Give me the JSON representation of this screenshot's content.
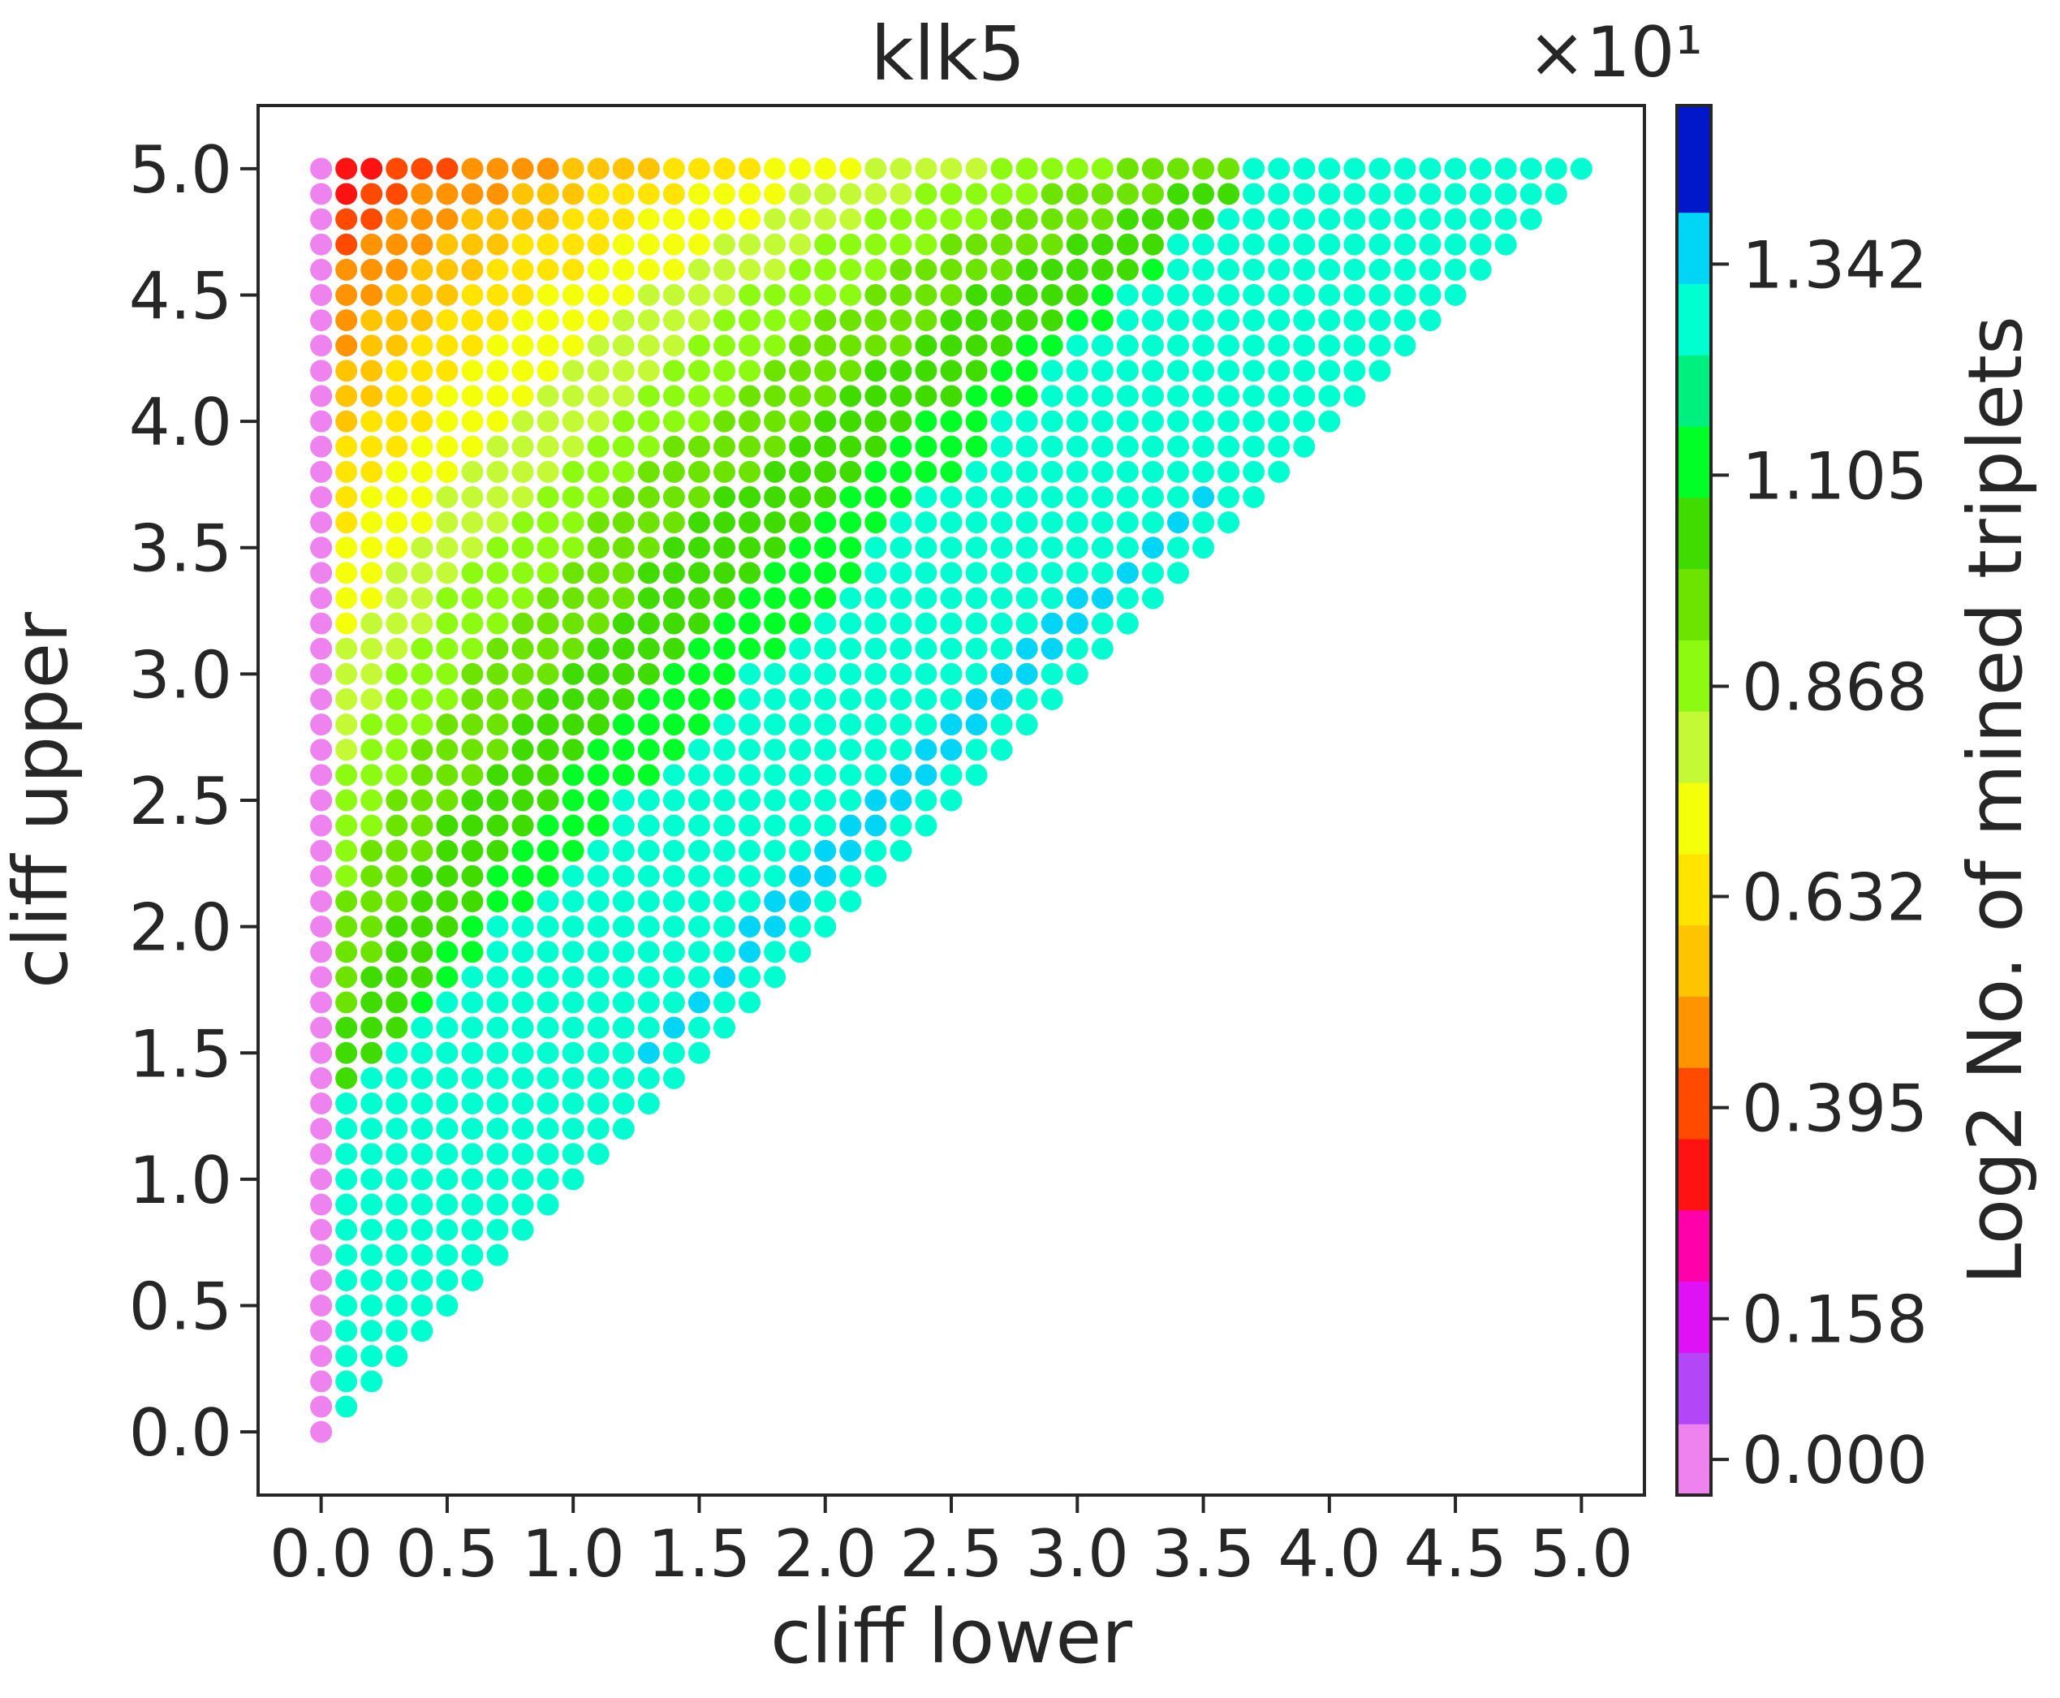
{
  "chart_data": {
    "type": "scatter",
    "title": "klk5",
    "xlabel": "cliff lower",
    "ylabel": "cliff upper",
    "xlim": [
      -0.25,
      5.25
    ],
    "ylim": [
      -0.25,
      5.25
    ],
    "xticks": [
      0.0,
      0.5,
      1.0,
      1.5,
      2.0,
      2.5,
      3.0,
      3.5,
      4.0,
      4.5,
      5.0
    ],
    "xtick_labels": [
      "0.0",
      "0.5",
      "1.0",
      "1.5",
      "2.0",
      "2.5",
      "3.0",
      "3.5",
      "4.0",
      "4.5",
      "5.0"
    ],
    "yticks": [
      0.0,
      0.5,
      1.0,
      1.5,
      2.0,
      2.5,
      3.0,
      3.5,
      4.0,
      4.5,
      5.0
    ],
    "ytick_labels": [
      "0.0",
      "0.5",
      "1.0",
      "1.5",
      "2.0",
      "2.5",
      "3.0",
      "3.5",
      "4.0",
      "4.5",
      "5.0"
    ],
    "grid_step": 0.1,
    "grid": false,
    "points_description": "Dots on a 0.1-step grid for every pair with cliff lower <= cliff upper, colored by log2 number of mined triplets.",
    "colorbar": {
      "label": "Log2 No. of mined triplets",
      "offset_text": "×10¹",
      "scale_factor": 10,
      "min": -0.04,
      "max": 1.52,
      "ticks": [
        0.0,
        0.158,
        0.395,
        0.632,
        0.868,
        1.105,
        1.342
      ],
      "tick_labels": [
        "0.000",
        "0.158",
        "0.395",
        "0.632",
        "0.868",
        "1.105",
        "1.342"
      ],
      "colors": [
        "#ee82ee",
        "#b346f7",
        "#de12f5",
        "#ff00aa",
        "#ff1212",
        "#ff4a00",
        "#ff9400",
        "#ffc400",
        "#ffe400",
        "#f4ff0a",
        "#c3fa35",
        "#8dfa12",
        "#6de400",
        "#40dc00",
        "#00ff26",
        "#00f07f",
        "#00ffd0",
        "#00d5f5",
        "#0018c9"
      ],
      "boundaries": [
        -0.04,
        0.04,
        0.12,
        0.2,
        0.28,
        0.36,
        0.44,
        0.52,
        0.6,
        0.68,
        0.76,
        0.84,
        0.92,
        1.0,
        1.08,
        1.16,
        1.24,
        1.32,
        1.4,
        1.52
      ]
    }
  }
}
